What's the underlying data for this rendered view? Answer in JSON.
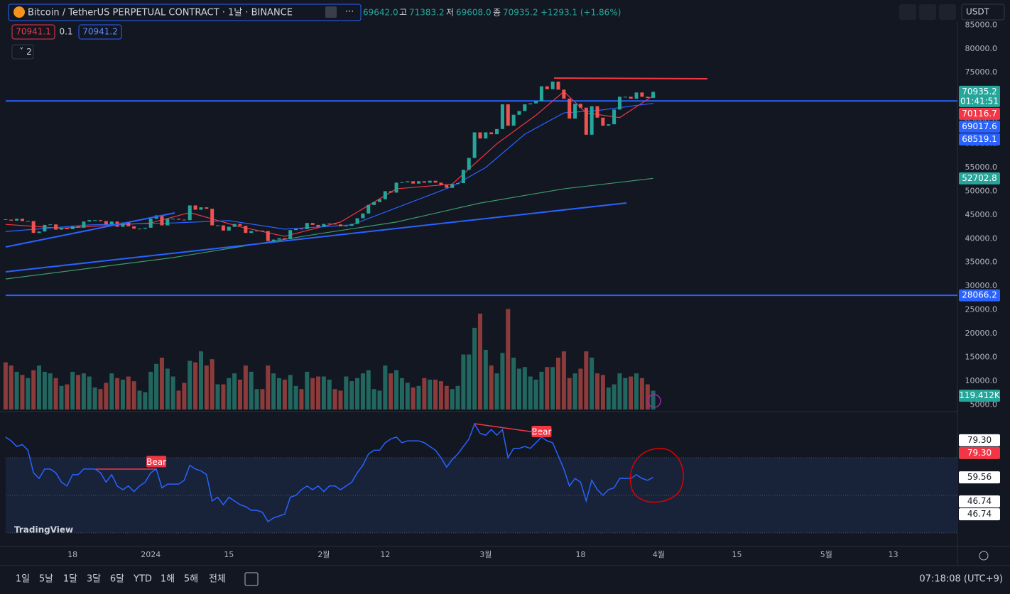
{
  "header": {
    "symbol": "Bitcoin / TetherUS PERPETUAL CONTRACT · 1날 · BINANCE",
    "open": "69642.0",
    "high_key": "고",
    "high": "71383.2",
    "low_key": "저",
    "low": "69608.0",
    "close_key": "종",
    "close": "70935.2",
    "change": "+1293.1 (+1.86%)",
    "sell": "70941.1",
    "spread": "0.1",
    "buy": "70941.2",
    "indicators": "2",
    "currency": "USDT"
  },
  "toolbar": {
    "timeframes": [
      "1일",
      "5날",
      "1달",
      "3달",
      "6달",
      "YTD",
      "1해",
      "5해",
      "전체"
    ],
    "clock": "07:18:08 (UTC+9)",
    "logo": "TradingView"
  },
  "chart_data": {
    "type": "candlestick",
    "up_color": "#26a69a",
    "down_color": "#ef5350",
    "volume_up_color": "#22675f",
    "volume_down_color": "#8c3b3b",
    "rsi_color": "#2962ff",
    "open": [
      44100,
      44000,
      43800,
      44200,
      43700,
      43700,
      41200,
      41500,
      42900,
      43000,
      41900,
      42300,
      42000,
      42600,
      42300,
      43600,
      43900,
      43900,
      43700,
      43000,
      43600,
      42500,
      43400,
      42600,
      42100,
      42100,
      42300,
      44200,
      44900,
      42800,
      44200,
      44200,
      44000,
      43900,
      47000,
      46100,
      46600,
      46300,
      42800,
      42800,
      41700,
      42500,
      43100,
      42700,
      41200,
      41600,
      41700,
      41600,
      39500,
      39800,
      40100,
      39900,
      41800,
      42100,
      42000,
      43300,
      42900,
      42500,
      43100,
      43200,
      43000,
      42600,
      42700,
      43100,
      44300,
      45300,
      47100,
      47700,
      48300,
      50000,
      49700,
      51800,
      51900,
      52100,
      51600,
      52100,
      51800,
      52200,
      51800,
      51300,
      50700,
      51500,
      51700,
      54500,
      57000,
      62400,
      61100,
      62400,
      62000,
      63100,
      68300,
      63800,
      66100,
      66900,
      68300,
      68500,
      69000,
      72100,
      71500,
      73100,
      71400,
      69500,
      65300,
      68400,
      67600,
      61900,
      67900,
      65500,
      63800,
      64100,
      67200,
      69900,
      69900,
      69500,
      70800,
      69900,
      69642
    ],
    "close": [
      44000,
      43800,
      44200,
      43700,
      43700,
      41200,
      41500,
      42900,
      43000,
      41900,
      42300,
      42000,
      42600,
      42300,
      43600,
      43900,
      43900,
      43700,
      43000,
      43600,
      42500,
      43400,
      42600,
      42100,
      42100,
      42300,
      44200,
      44900,
      42800,
      44200,
      44200,
      44000,
      43900,
      47000,
      46100,
      46600,
      46300,
      42800,
      42800,
      41700,
      42500,
      43100,
      42700,
      41200,
      41600,
      41700,
      41600,
      39500,
      39800,
      40100,
      39900,
      41800,
      42100,
      42000,
      43300,
      42900,
      42500,
      43100,
      43200,
      43000,
      42600,
      42700,
      43100,
      44300,
      45300,
      47100,
      47700,
      48300,
      50000,
      49700,
      51800,
      51900,
      52100,
      51600,
      52100,
      51800,
      52200,
      51800,
      51300,
      50700,
      51500,
      51700,
      54500,
      57000,
      62400,
      61100,
      62400,
      62000,
      63100,
      68300,
      63800,
      66100,
      66900,
      68300,
      68500,
      69000,
      72100,
      71500,
      73100,
      71400,
      69500,
      65300,
      68400,
      67600,
      61900,
      67900,
      65500,
      63800,
      64100,
      67200,
      69900,
      69900,
      69500,
      70800,
      69900,
      69642,
      70935.2
    ],
    "volume": [
      300,
      280,
      240,
      220,
      200,
      250,
      280,
      240,
      230,
      200,
      150,
      160,
      240,
      220,
      230,
      210,
      140,
      130,
      170,
      230,
      200,
      190,
      210,
      180,
      120,
      110,
      240,
      290,
      330,
      260,
      210,
      120,
      170,
      310,
      300,
      370,
      280,
      320,
      160,
      160,
      200,
      230,
      190,
      280,
      240,
      130,
      130,
      280,
      230,
      200,
      190,
      220,
      150,
      130,
      240,
      200,
      210,
      210,
      190,
      130,
      120,
      210,
      180,
      200,
      230,
      250,
      130,
      120,
      280,
      230,
      250,
      200,
      170,
      140,
      150,
      200,
      190,
      190,
      180,
      150,
      130,
      150,
      350,
      350,
      520,
      610,
      380,
      280,
      230,
      360,
      640,
      330,
      260,
      270,
      210,
      190,
      240,
      270,
      270,
      330,
      370,
      200,
      230,
      260,
      370,
      330,
      230,
      220,
      140,
      160,
      230,
      200,
      210,
      230,
      200,
      160,
      119.412
    ],
    "rsi": [
      81,
      79,
      76,
      77,
      74,
      62,
      59,
      64,
      64,
      62,
      57,
      55,
      61,
      61,
      64,
      64,
      64,
      62,
      57,
      61,
      55,
      53,
      55,
      52,
      55,
      57,
      62,
      64,
      54,
      56,
      56,
      56,
      58,
      66,
      64,
      63,
      61,
      47,
      49,
      45,
      49,
      47,
      45,
      44,
      42,
      42,
      41,
      36,
      38,
      39,
      40,
      49,
      50,
      53,
      55,
      53,
      55,
      52,
      55,
      55,
      53,
      55,
      57,
      62,
      66,
      72,
      74,
      74,
      78,
      80,
      81,
      78,
      79,
      79,
      79,
      78,
      76,
      74,
      70,
      65,
      69,
      72,
      76,
      80,
      88,
      83,
      82,
      85,
      82,
      85,
      70,
      75,
      75,
      76,
      75,
      78,
      81,
      79,
      78,
      71,
      64,
      55,
      59,
      57,
      47,
      58,
      53,
      50,
      53,
      54,
      59,
      59,
      59,
      61,
      59,
      58,
      59.56
    ],
    "xlim": [
      -1,
      170.5
    ],
    "xticks": [
      {
        "value": 12,
        "label": "18"
      },
      {
        "value": 26,
        "label": "2024"
      },
      {
        "value": 40,
        "label": "15"
      },
      {
        "value": 57,
        "label": "2월"
      },
      {
        "value": 68,
        "label": "12"
      },
      {
        "value": 86,
        "label": "3월"
      },
      {
        "value": 103,
        "label": "18"
      },
      {
        "value": 117,
        "label": "4월"
      },
      {
        "value": 131,
        "label": "15"
      },
      {
        "value": 147,
        "label": "5월"
      },
      {
        "value": 159,
        "label": "13"
      }
    ],
    "ylim": [
      4000,
      86100
    ],
    "yticks": [
      {
        "value": 85000,
        "label": "85000.0"
      },
      {
        "value": 80000,
        "label": "80000.0"
      },
      {
        "value": 75000,
        "label": "75000.0"
      },
      {
        "value": 70000,
        "label": "70000.0"
      },
      {
        "value": 65000,
        "label": "65000.0"
      },
      {
        "value": 60000,
        "label": "60000.0"
      },
      {
        "value": 55000,
        "label": "55000.0"
      },
      {
        "value": 50000,
        "label": "50000.0"
      },
      {
        "value": 45000,
        "label": "45000.0"
      },
      {
        "value": 40000,
        "label": "40000.0"
      },
      {
        "value": 35000,
        "label": "35000.0"
      },
      {
        "value": 30000,
        "label": "30000.0"
      },
      {
        "value": 25000,
        "label": "25000.0"
      },
      {
        "value": 20000,
        "label": "20000.0"
      },
      {
        "value": 15000,
        "label": "15000.0"
      },
      {
        "value": 10000,
        "label": "10000.0"
      },
      {
        "value": 5000,
        "label": "5000.0"
      }
    ],
    "volume_ylim": [
      0,
      2480
    ],
    "rsi_ylim": [
      22.8,
      93.8
    ],
    "rsi_levels": [
      70,
      50,
      30
    ],
    "lines": [
      {
        "color": "#f23645",
        "points": [
          [
            0,
            43000
          ],
          [
            10,
            42200
          ],
          [
            26,
            43300
          ],
          [
            33,
            45500
          ],
          [
            42,
            42500
          ],
          [
            50,
            40500
          ],
          [
            60,
            43500
          ],
          [
            70,
            50500
          ],
          [
            80,
            51500
          ],
          [
            88,
            60000
          ],
          [
            95,
            66000
          ],
          [
            100,
            71000
          ],
          [
            104,
            66500
          ],
          [
            110,
            65500
          ],
          [
            116,
            70116.7
          ]
        ]
      },
      {
        "color": "#2962ff",
        "points": [
          [
            0,
            41500
          ],
          [
            15,
            42900
          ],
          [
            30,
            43300
          ],
          [
            40,
            43800
          ],
          [
            50,
            42000
          ],
          [
            62,
            42900
          ],
          [
            70,
            46500
          ],
          [
            80,
            51000
          ],
          [
            86,
            55000
          ],
          [
            93,
            62000
          ],
          [
            100,
            66500
          ],
          [
            106,
            67000
          ],
          [
            116,
            68519.1
          ]
        ]
      },
      {
        "color": "#3c9a6a",
        "points": [
          [
            0,
            31500
          ],
          [
            30,
            36000
          ],
          [
            56,
            41000
          ],
          [
            70,
            43500
          ],
          [
            85,
            47500
          ],
          [
            100,
            50500
          ],
          [
            116,
            52702.8
          ]
        ]
      }
    ],
    "hlines": [
      {
        "value": 69017.6,
        "color": "#2962ff"
      },
      {
        "value": 28066.2,
        "color": "#2962ff"
      }
    ],
    "price_badges": [
      {
        "value": 70935.2,
        "color": "#26a69a",
        "sub": "01:41:51"
      },
      {
        "value": 70116.7,
        "color": "#f23645"
      },
      {
        "value": 69017.6,
        "color": "#2962ff"
      },
      {
        "value": 68519.1,
        "color": "#2962ff"
      },
      {
        "value": 52702.8,
        "color": "#26a69a"
      },
      {
        "value": 28066.2,
        "color": "#2962ff"
      }
    ],
    "volume_badge": {
      "value": 119.412,
      "label": "119.412K",
      "color": "#26a69a"
    },
    "rsi_badges": [
      {
        "value": 79.3,
        "label": "79.30",
        "color": "#ffffff"
      },
      {
        "value": 79.3,
        "label": "79.30",
        "color": "#f23645"
      },
      {
        "value": 59.56,
        "label": "59.56",
        "color": "#ffffff"
      },
      {
        "value": 46.74,
        "label": "46.74",
        "color": "#ffffff"
      },
      {
        "value": 46.74,
        "label": "46.74",
        "color": "#ffffff"
      }
    ],
    "annotations": [
      {
        "text": "Bear",
        "x": 27,
        "y": 68
      },
      {
        "text": "Bear",
        "x": 96,
        "y": 84
      }
    ]
  }
}
